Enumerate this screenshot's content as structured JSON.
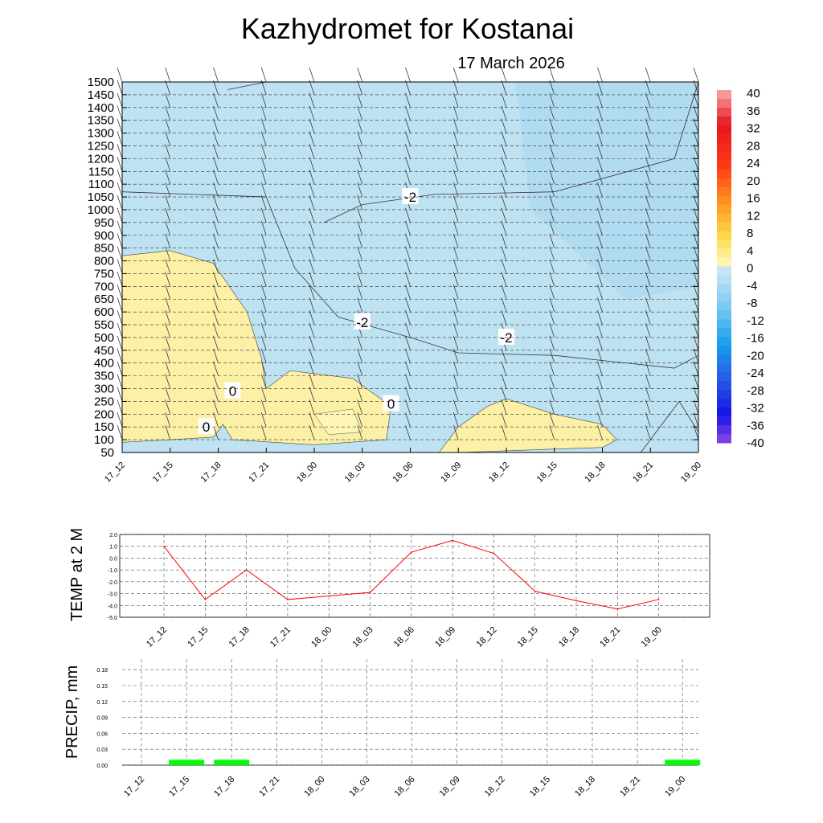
{
  "header": {
    "title": "Kazhydromet  for Kostanai",
    "date": "17 March 2026"
  },
  "time_labels": [
    "17_12",
    "17_15",
    "17_18",
    "17_21",
    "18_00",
    "18_03",
    "18_06",
    "18_09",
    "18_12",
    "18_15",
    "18_18",
    "18_21",
    "19_00"
  ],
  "colors": {
    "warm_fill": "#fbf0a6",
    "cold_fill": "#bfe2f3",
    "cold_fill_deep": "#a9d8ef",
    "temp_line": "#ff0000",
    "precip_bar": "#00ff00"
  },
  "chart_data": [
    {
      "type": "heatmap",
      "title": "Kazhydromet  for Kostanai",
      "subtitle": "17 March 2026",
      "x": [
        "17_12",
        "17_15",
        "17_18",
        "17_21",
        "18_00",
        "18_03",
        "18_06",
        "18_09",
        "18_12",
        "18_15",
        "18_18",
        "18_21",
        "19_00"
      ],
      "y_ticks": [
        50,
        100,
        150,
        200,
        250,
        300,
        350,
        400,
        450,
        500,
        550,
        600,
        650,
        700,
        750,
        800,
        850,
        900,
        950,
        1000,
        1050,
        1100,
        1150,
        1200,
        1250,
        1300,
        1350,
        1400,
        1450,
        1500
      ],
      "ylim": [
        50,
        1500
      ],
      "colorbar": {
        "ticks": [
          "40",
          "36",
          "32",
          "28",
          "24",
          "20",
          "16",
          "12",
          "8",
          "4",
          "0",
          "-4",
          "-8",
          "-12",
          "-16",
          "-20",
          "-24",
          "-28",
          "-32",
          "-36",
          "-40"
        ],
        "range": [
          -40,
          40
        ]
      },
      "contours": [
        {
          "level": 0,
          "labels": [
            "0",
            "0",
            "0"
          ]
        },
        {
          "level": -2,
          "labels": [
            "-2",
            "-2",
            "-2"
          ]
        }
      ],
      "grid": true
    },
    {
      "type": "line",
      "ylabel": "TEMP at 2 M",
      "x": [
        "17_12",
        "17_15",
        "17_18",
        "17_21",
        "18_00",
        "18_03",
        "18_06",
        "18_09",
        "18_12",
        "18_15",
        "18_18",
        "18_21",
        "19_00"
      ],
      "series": [
        {
          "values": [
            1.0,
            -3.5,
            -1.0,
            -3.5,
            -3.2,
            -2.9,
            0.5,
            1.5,
            0.4,
            -2.8,
            -3.6,
            -4.3,
            -3.5
          ]
        }
      ],
      "y_ticks": [
        "2.0",
        "1.0",
        "0.0",
        "-1.0",
        "-2.0",
        "-3.0",
        "-4.0",
        "-5.0"
      ],
      "ylim": [
        -5.0,
        2.0
      ],
      "grid": true
    },
    {
      "type": "bar",
      "ylabel": "PRECIP, mm",
      "categories": [
        "17_12",
        "17_15",
        "17_18",
        "17_21",
        "18_00",
        "18_03",
        "18_06",
        "18_09",
        "18_12",
        "18_15",
        "18_18",
        "18_21",
        "19_00"
      ],
      "values": [
        0,
        0.01,
        0.01,
        0,
        0,
        0,
        0,
        0,
        0,
        0,
        0,
        0,
        0.01
      ],
      "y_ticks": [
        "0.18",
        "0.15",
        "0.12",
        "0.09",
        "0.06",
        "0.03",
        "0.00"
      ],
      "ylim": [
        0,
        0.2
      ],
      "grid": true
    }
  ]
}
